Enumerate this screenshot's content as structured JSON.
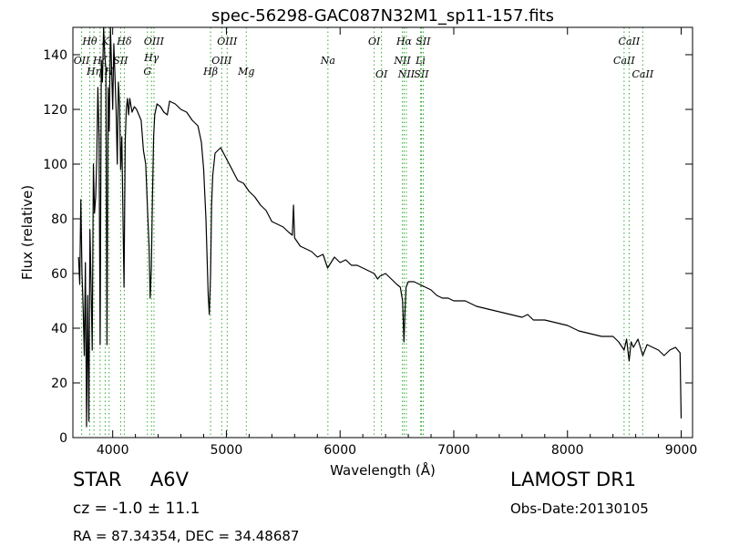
{
  "chart_data": {
    "type": "line",
    "title": "spec-56298-GAC087N32M1_sp11-157.fits",
    "xlabel": "Wavelength (Å)",
    "ylabel": "Flux (relative)",
    "xlim": [
      3650,
      9100
    ],
    "ylim": [
      0,
      150
    ],
    "xticks": [
      4000,
      5000,
      6000,
      7000,
      8000,
      9000
    ],
    "yticks": [
      0,
      20,
      40,
      60,
      80,
      100,
      120,
      140
    ],
    "grid": false,
    "series": [
      {
        "color": "#000000",
        "x": [
          3700,
          3710,
          3720,
          3730,
          3740,
          3750,
          3760,
          3770,
          3780,
          3790,
          3800,
          3810,
          3820,
          3830,
          3840,
          3850,
          3860,
          3870,
          3880,
          3890,
          3900,
          3910,
          3920,
          3930,
          3940,
          3950,
          3960,
          3970,
          3980,
          3990,
          4000,
          4010,
          4020,
          4030,
          4040,
          4050,
          4060,
          4070,
          4080,
          4090,
          4100,
          4110,
          4120,
          4130,
          4140,
          4150,
          4170,
          4190,
          4210,
          4230,
          4250,
          4270,
          4290,
          4310,
          4320,
          4330,
          4340,
          4350,
          4360,
          4370,
          4390,
          4420,
          4450,
          4480,
          4500,
          4550,
          4600,
          4650,
          4700,
          4750,
          4780,
          4800,
          4820,
          4840,
          4850,
          4861,
          4870,
          4880,
          4900,
          4950,
          5000,
          5050,
          5100,
          5150,
          5200,
          5250,
          5300,
          5350,
          5400,
          5450,
          5500,
          5550,
          5580,
          5590,
          5600,
          5650,
          5700,
          5750,
          5800,
          5850,
          5890,
          5950,
          6000,
          6050,
          6100,
          6150,
          6200,
          6250,
          6300,
          6330,
          6350,
          6400,
          6450,
          6500,
          6530,
          6550,
          6562,
          6570,
          6580,
          6600,
          6650,
          6700,
          6750,
          6800,
          6850,
          6900,
          6950,
          7000,
          7100,
          7200,
          7300,
          7400,
          7500,
          7600,
          7650,
          7700,
          7800,
          7900,
          8000,
          8100,
          8200,
          8300,
          8400,
          8450,
          8498,
          8520,
          8542,
          8560,
          8580,
          8620,
          8662,
          8700,
          8750,
          8800,
          8850,
          8900,
          8950,
          8970,
          8990,
          9000
        ],
        "y": [
          66,
          56,
          87,
          60,
          48,
          30,
          64,
          4,
          52,
          6,
          76,
          55,
          32,
          100,
          82,
          88,
          102,
          128,
          110,
          34,
          138,
          130,
          150,
          140,
          135,
          34,
          128,
          112,
          150,
          136,
          120,
          144,
          132,
          120,
          100,
          130,
          122,
          98,
          110,
          82,
          55,
          108,
          120,
          124,
          118,
          124,
          119,
          121,
          120,
          118,
          116,
          105,
          100,
          80,
          70,
          51,
          62,
          88,
          110,
          118,
          122,
          121,
          119,
          118,
          123,
          122,
          120,
          119,
          116,
          114,
          108,
          98,
          80,
          52,
          45,
          60,
          85,
          96,
          104,
          106,
          102,
          98,
          94,
          93,
          90,
          88,
          85,
          83,
          79,
          78,
          77,
          75,
          74,
          85,
          73,
          70,
          69,
          68,
          66,
          67,
          62,
          66,
          64,
          65,
          63,
          63,
          62,
          61,
          60,
          58,
          59,
          60,
          58,
          56,
          55,
          50,
          35,
          45,
          55,
          57,
          57,
          56,
          55,
          54,
          52,
          51,
          51,
          50,
          50,
          48,
          47,
          46,
          45,
          44,
          45,
          43,
          43,
          42,
          41,
          39,
          38,
          37,
          37,
          35,
          32,
          36,
          28,
          35,
          33,
          36,
          30,
          34,
          33,
          32,
          30,
          32,
          33,
          32,
          31,
          7
        ]
      }
    ],
    "spectral_lines": [
      {
        "label": "OII",
        "x": 3727,
        "label_y": 138
      },
      {
        "label": "Hθ",
        "x": 3798,
        "label_y": 145
      },
      {
        "label": "Hη",
        "x": 3835,
        "label_y": 134
      },
      {
        "label": "Hζ",
        "x": 3889,
        "label_y": 138
      },
      {
        "label": "K",
        "x": 3934,
        "label_y": 145
      },
      {
        "label": "H",
        "x": 3968,
        "label_y": 134
      },
      {
        "label": "SII",
        "x": 4070,
        "label_y": 138
      },
      {
        "label": "Hδ",
        "x": 4102,
        "label_y": 145
      },
      {
        "label": "G",
        "x": 4305,
        "label_y": 134
      },
      {
        "label": "Hγ",
        "x": 4341,
        "label_y": 139
      },
      {
        "label": "OIII",
        "x": 4363,
        "label_y": 145
      },
      {
        "label": "Hβ",
        "x": 4861,
        "label_y": 134
      },
      {
        "label": "OIII",
        "x": 4959,
        "label_y": 138
      },
      {
        "label": "OIII",
        "x": 5007,
        "label_y": 145
      },
      {
        "label": "Mg",
        "x": 5175,
        "label_y": 134
      },
      {
        "label": "Na",
        "x": 5893,
        "label_y": 138
      },
      {
        "label": "OI",
        "x": 6300,
        "label_y": 145
      },
      {
        "label": "OI",
        "x": 6364,
        "label_y": 133
      },
      {
        "label": "NII",
        "x": 6548,
        "label_y": 138
      },
      {
        "label": "Hα",
        "x": 6563,
        "label_y": 145
      },
      {
        "label": "NII",
        "x": 6583,
        "label_y": 133
      },
      {
        "label": "Li",
        "x": 6708,
        "label_y": 138
      },
      {
        "label": "SII",
        "x": 6716,
        "label_y": 133
      },
      {
        "label": "SII",
        "x": 6731,
        "label_y": 145
      },
      {
        "label": "CaII",
        "x": 8498,
        "label_y": 138
      },
      {
        "label": "CaII",
        "x": 8542,
        "label_y": 145
      },
      {
        "label": "CaII",
        "x": 8662,
        "label_y": 133
      }
    ],
    "line_color": "#33aa33"
  },
  "footer": {
    "object_class": "STAR",
    "subclass": "A6V",
    "cz_text": "cz = -1.0  ± 11.1",
    "radec_text": "RA = 87.34354, DEC = 34.48687",
    "survey": "LAMOST DR1",
    "obs_date": "Obs-Date:20130105"
  }
}
